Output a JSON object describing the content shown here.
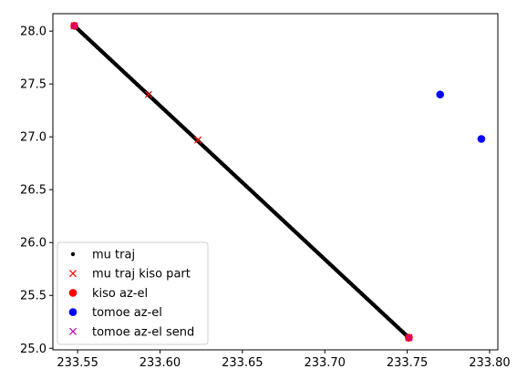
{
  "chart_data": {
    "type": "scatter",
    "title": "",
    "xlabel": "",
    "ylabel": "",
    "xlim": [
      233.535,
      233.805
    ],
    "ylim": [
      24.985,
      28.165
    ],
    "xticks": [
      "233.55",
      "233.60",
      "233.65",
      "233.70",
      "233.75",
      "233.80"
    ],
    "yticks": [
      "25.0",
      "25.5",
      "26.0",
      "26.5",
      "27.0",
      "27.5",
      "28.0"
    ],
    "grid": false,
    "legend_position": "lower-left",
    "series": [
      {
        "name": "mu traj",
        "marker": "dot",
        "color": "#000000",
        "line": {
          "x_start": 233.548,
          "y_start": 28.05,
          "x_end": 233.751,
          "y_end": 25.1,
          "count": 260
        }
      },
      {
        "name": "mu traj kiso part",
        "marker": "x",
        "color": "#ff0000",
        "points": [
          {
            "x": 233.548,
            "y": 28.05
          },
          {
            "x": 233.593,
            "y": 27.4
          },
          {
            "x": 233.623,
            "y": 26.97
          },
          {
            "x": 233.751,
            "y": 25.1
          }
        ]
      },
      {
        "name": "kiso az-el",
        "marker": "circle",
        "color": "#ff0000",
        "points": [
          {
            "x": 233.548,
            "y": 28.05
          },
          {
            "x": 233.751,
            "y": 25.1
          }
        ]
      },
      {
        "name": "tomoe az-el",
        "marker": "circle",
        "color": "#0000ff",
        "points": [
          {
            "x": 233.77,
            "y": 27.4
          },
          {
            "x": 233.795,
            "y": 26.98
          }
        ]
      },
      {
        "name": "tomoe az-el send",
        "marker": "x",
        "color": "#bf00bf",
        "points": [
          {
            "x": 233.548,
            "y": 28.05
          },
          {
            "x": 233.751,
            "y": 25.1
          }
        ]
      }
    ]
  }
}
